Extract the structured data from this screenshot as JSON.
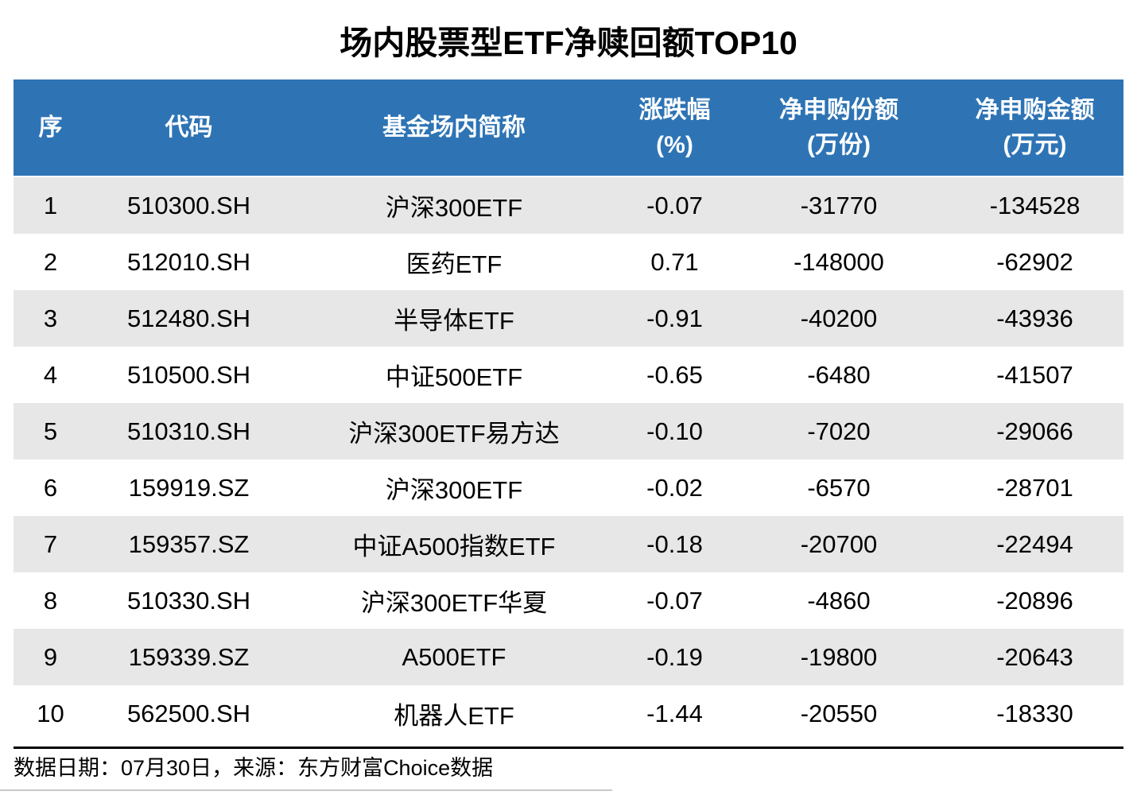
{
  "title": "场内股票型ETF净赎回额TOP10",
  "chart_data": {
    "type": "table",
    "title": "场内股票型ETF净赎回额TOP10",
    "columns": [
      {
        "label": "序",
        "unit": ""
      },
      {
        "label": "代码",
        "unit": ""
      },
      {
        "label": "基金场内简称",
        "unit": ""
      },
      {
        "label": "涨跌幅",
        "unit": "(%)"
      },
      {
        "label": "净申购份额",
        "unit": "(万份)"
      },
      {
        "label": "净申购金额",
        "unit": "(万元)"
      }
    ],
    "rows": [
      {
        "seq": "1",
        "code": "510300.SH",
        "name": "沪深300ETF",
        "change": "-0.07",
        "shares": "-31770",
        "amount": "-134528"
      },
      {
        "seq": "2",
        "code": "512010.SH",
        "name": "医药ETF",
        "change": "0.71",
        "shares": "-148000",
        "amount": "-62902"
      },
      {
        "seq": "3",
        "code": "512480.SH",
        "name": "半导体ETF",
        "change": "-0.91",
        "shares": "-40200",
        "amount": "-43936"
      },
      {
        "seq": "4",
        "code": "510500.SH",
        "name": "中证500ETF",
        "change": "-0.65",
        "shares": "-6480",
        "amount": "-41507"
      },
      {
        "seq": "5",
        "code": "510310.SH",
        "name": "沪深300ETF易方达",
        "change": "-0.10",
        "shares": "-7020",
        "amount": "-29066"
      },
      {
        "seq": "6",
        "code": "159919.SZ",
        "name": "沪深300ETF",
        "change": "-0.02",
        "shares": "-6570",
        "amount": "-28701"
      },
      {
        "seq": "7",
        "code": "159357.SZ",
        "name": "中证A500指数ETF",
        "change": "-0.18",
        "shares": "-20700",
        "amount": "-22494"
      },
      {
        "seq": "8",
        "code": "510330.SH",
        "name": "沪深300ETF华夏",
        "change": "-0.07",
        "shares": "-4860",
        "amount": "-20896"
      },
      {
        "seq": "9",
        "code": "159339.SZ",
        "name": "A500ETF",
        "change": "-0.19",
        "shares": "-19800",
        "amount": "-20643"
      },
      {
        "seq": "10",
        "code": "562500.SH",
        "name": "机器人ETF",
        "change": "-1.44",
        "shares": "-20550",
        "amount": "-18330"
      }
    ]
  },
  "footer": {
    "text": "数据日期：07月30日，来源：东方财富Choice数据"
  },
  "colors": {
    "header_bg": "#2E74B5",
    "header_text": "#FFFFFF",
    "row_band_bg": "#E7E7E7",
    "row_bg": "#FFFFFF",
    "divider": "#000000",
    "bottom_line": "#C9C9C9",
    "body_text": "#000000"
  }
}
